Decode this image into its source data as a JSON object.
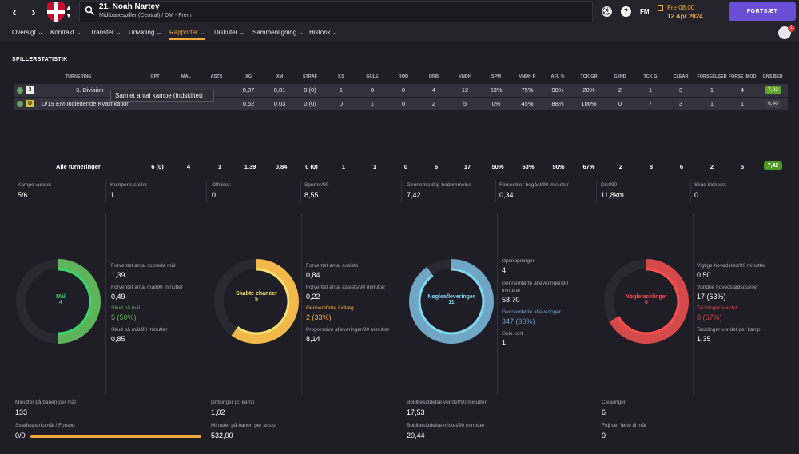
{
  "header": {
    "player_name": "21. Noah Nartey",
    "player_position": "Midtbanespiller (Central) / DM - Frem",
    "date_day": "Fre 08:00",
    "date_full": "12 Apr 2024",
    "continue_label": "FORTSÆT",
    "fm_label": "FM",
    "help_label": "?",
    "notifications_count": "1",
    "back_icon": "chevron-left-icon",
    "forward_icon": "chevron-right-icon",
    "search_icon": "magnify-icon",
    "club_crest_icon": "club-crest-icon",
    "accent_color": "#f2a93b",
    "continue_color": "#6a4fd6"
  },
  "menu": [
    {
      "label": "Oversigt ⌄"
    },
    {
      "label": "Kontrakt ⌄"
    },
    {
      "label": "Transfer ⌄"
    },
    {
      "label": "Udvikling ⌄"
    },
    {
      "label": "Rapporter ⌄"
    },
    {
      "label": "Diskutér ⌄"
    },
    {
      "label": "Sammenligning ⌄"
    },
    {
      "label": "Historik ⌄"
    }
  ],
  "section_title": "SPILLERSTATISTIK",
  "table": {
    "columns": [
      "TURNERING",
      "OPT",
      "MÅL",
      "ASTS",
      "XG",
      "XM",
      "STRAF",
      "KS",
      "GULE",
      "RØD",
      "DRB",
      "VNDH",
      "SPM",
      "VNDH R",
      "AFL %",
      "TCK GR",
      "G IND",
      "TCK G",
      "CLEAR",
      "FORSEELSER",
      "FORSE IMOD",
      "GNS BED"
    ],
    "rows": [
      {
        "level": "3",
        "competition": "3. Division",
        "cells": [
          "",
          "",
          "",
          "0,87",
          "0,81",
          "0 (0)",
          "1",
          "0",
          "0",
          "4",
          "12",
          "63%",
          "75%",
          "90%",
          "20%",
          "2",
          "1",
          "3",
          "1",
          "4"
        ],
        "rating": "7,93",
        "rating_color": "#5fa62b"
      },
      {
        "level": "U",
        "competition": "U/19 EM Indledende Kvalifikation",
        "cells": [
          "",
          "",
          "",
          "0,52",
          "0,03",
          "0 (0)",
          "0",
          "1",
          "0",
          "2",
          "5",
          "0%",
          "45%",
          "88%",
          "100%",
          "0",
          "7",
          "3",
          "1",
          "1"
        ],
        "rating": "6,40",
        "rating_color": "#3e3c44"
      }
    ],
    "tooltip": "Samlet antal kampe (indskiftet)",
    "totals_label": "Alle turneringer",
    "totals": [
      "6 (0)",
      "4",
      "1",
      "1,39",
      "0,84",
      "0 (0)",
      "1",
      "1",
      "0",
      "6",
      "17",
      "50%",
      "63%",
      "90%",
      "67%",
      "2",
      "8",
      "6",
      "2",
      "5"
    ],
    "totals_rating": "7,42"
  },
  "summary": [
    {
      "label": "Kampe vundet",
      "value": "5/6"
    },
    {
      "label": "Kampens spiller",
      "value": "1"
    },
    {
      "label": "Offsides",
      "value": "0"
    },
    {
      "label": "Spurter/90",
      "value": "8,55"
    },
    {
      "label": "Gennemsnitlig bedømmelse",
      "value": "7,42"
    },
    {
      "label": "Forseelser begået/90 minutter",
      "value": "0,34"
    },
    {
      "label": "Dist/90",
      "value": "11,8km"
    },
    {
      "label": "Skud blokeret",
      "value": "0"
    }
  ],
  "panels": [
    {
      "ring_title": "Mål",
      "ring_value": "4",
      "ring_color": "#5fb35a",
      "ring_text_color": "#36d66a",
      "ring_fraction": 0.5,
      "stats": [
        {
          "label": "Forventet antal scorede mål",
          "value": "1,39"
        },
        {
          "label": "Forventet antal mål/90 minutter",
          "value": "0,49"
        },
        {
          "label": "Skud på mål",
          "value": "5 (50%)",
          "highlight": "#5fb35a"
        },
        {
          "label": "Skud på mål/90 minutter",
          "value": "0,85"
        }
      ]
    },
    {
      "ring_title": "Skabte chancer",
      "ring_value": "5",
      "ring_color": "#f2b84a",
      "ring_text_color": "#f2e070",
      "ring_fraction": 0.6,
      "stats": [
        {
          "label": "Forventet antal assists",
          "value": "0,84"
        },
        {
          "label": "Forventet antal assists/90 minutter",
          "value": "0,22"
        },
        {
          "label": "Gennemførte indlæg",
          "value": "2 (33%)",
          "highlight": "#f2a93b"
        },
        {
          "label": "Progressive afleveringer/90 minutter",
          "value": "8,14"
        }
      ]
    },
    {
      "ring_title": "Nøgleafleveringer",
      "ring_value": "11",
      "ring_color": "#6fa6c6",
      "ring_text_color": "#7fd8f0",
      "ring_fraction": 0.9,
      "stats": [
        {
          "label": "Opsnapninger",
          "value": "4"
        },
        {
          "label": "Gennemførte afleveringer/90 minutter",
          "value": "58,70"
        },
        {
          "label": "Gennemførte afleveringer",
          "value": "347 (90%)",
          "highlight": "#6fa6c6"
        },
        {
          "label": "Gule kort",
          "value": "1"
        }
      ]
    },
    {
      "ring_title": "Nøgletacklinger",
      "ring_value": "0",
      "ring_color": "#d44a4a",
      "ring_text_color": "#ff4e4e",
      "ring_fraction": 0.67,
      "stats": [
        {
          "label": "Vigtige hovedstød/90 minutter",
          "value": "0,50"
        },
        {
          "label": "Vundne hovedstødsdueller",
          "value": "17 (63%)"
        },
        {
          "label": "Tacklinger vundet",
          "value": "8 (67%)",
          "highlight": "#d44a4a"
        },
        {
          "label": "Tacklinger vundet per kamp",
          "value": "1,35"
        }
      ]
    }
  ],
  "bottom": [
    {
      "label": "Minutter på banen per mål",
      "value": "133"
    },
    {
      "label": "Straffesparksmål / Forsøg",
      "value": "0/0",
      "progress": 1.0
    },
    {
      "label": "Driblinger pr. kamp",
      "value": "1,02"
    },
    {
      "label": "Minutter på banen per assist",
      "value": "532,00"
    },
    {
      "label": "Boldbesiddelse vundet/90 minutter",
      "value": "17,53"
    },
    {
      "label": "Boldbesiddelse mistet/90 minutter",
      "value": "20,44"
    },
    {
      "label": "Clearinger",
      "value": "6"
    },
    {
      "label": "Fejl der førte til mål",
      "value": "0"
    }
  ]
}
